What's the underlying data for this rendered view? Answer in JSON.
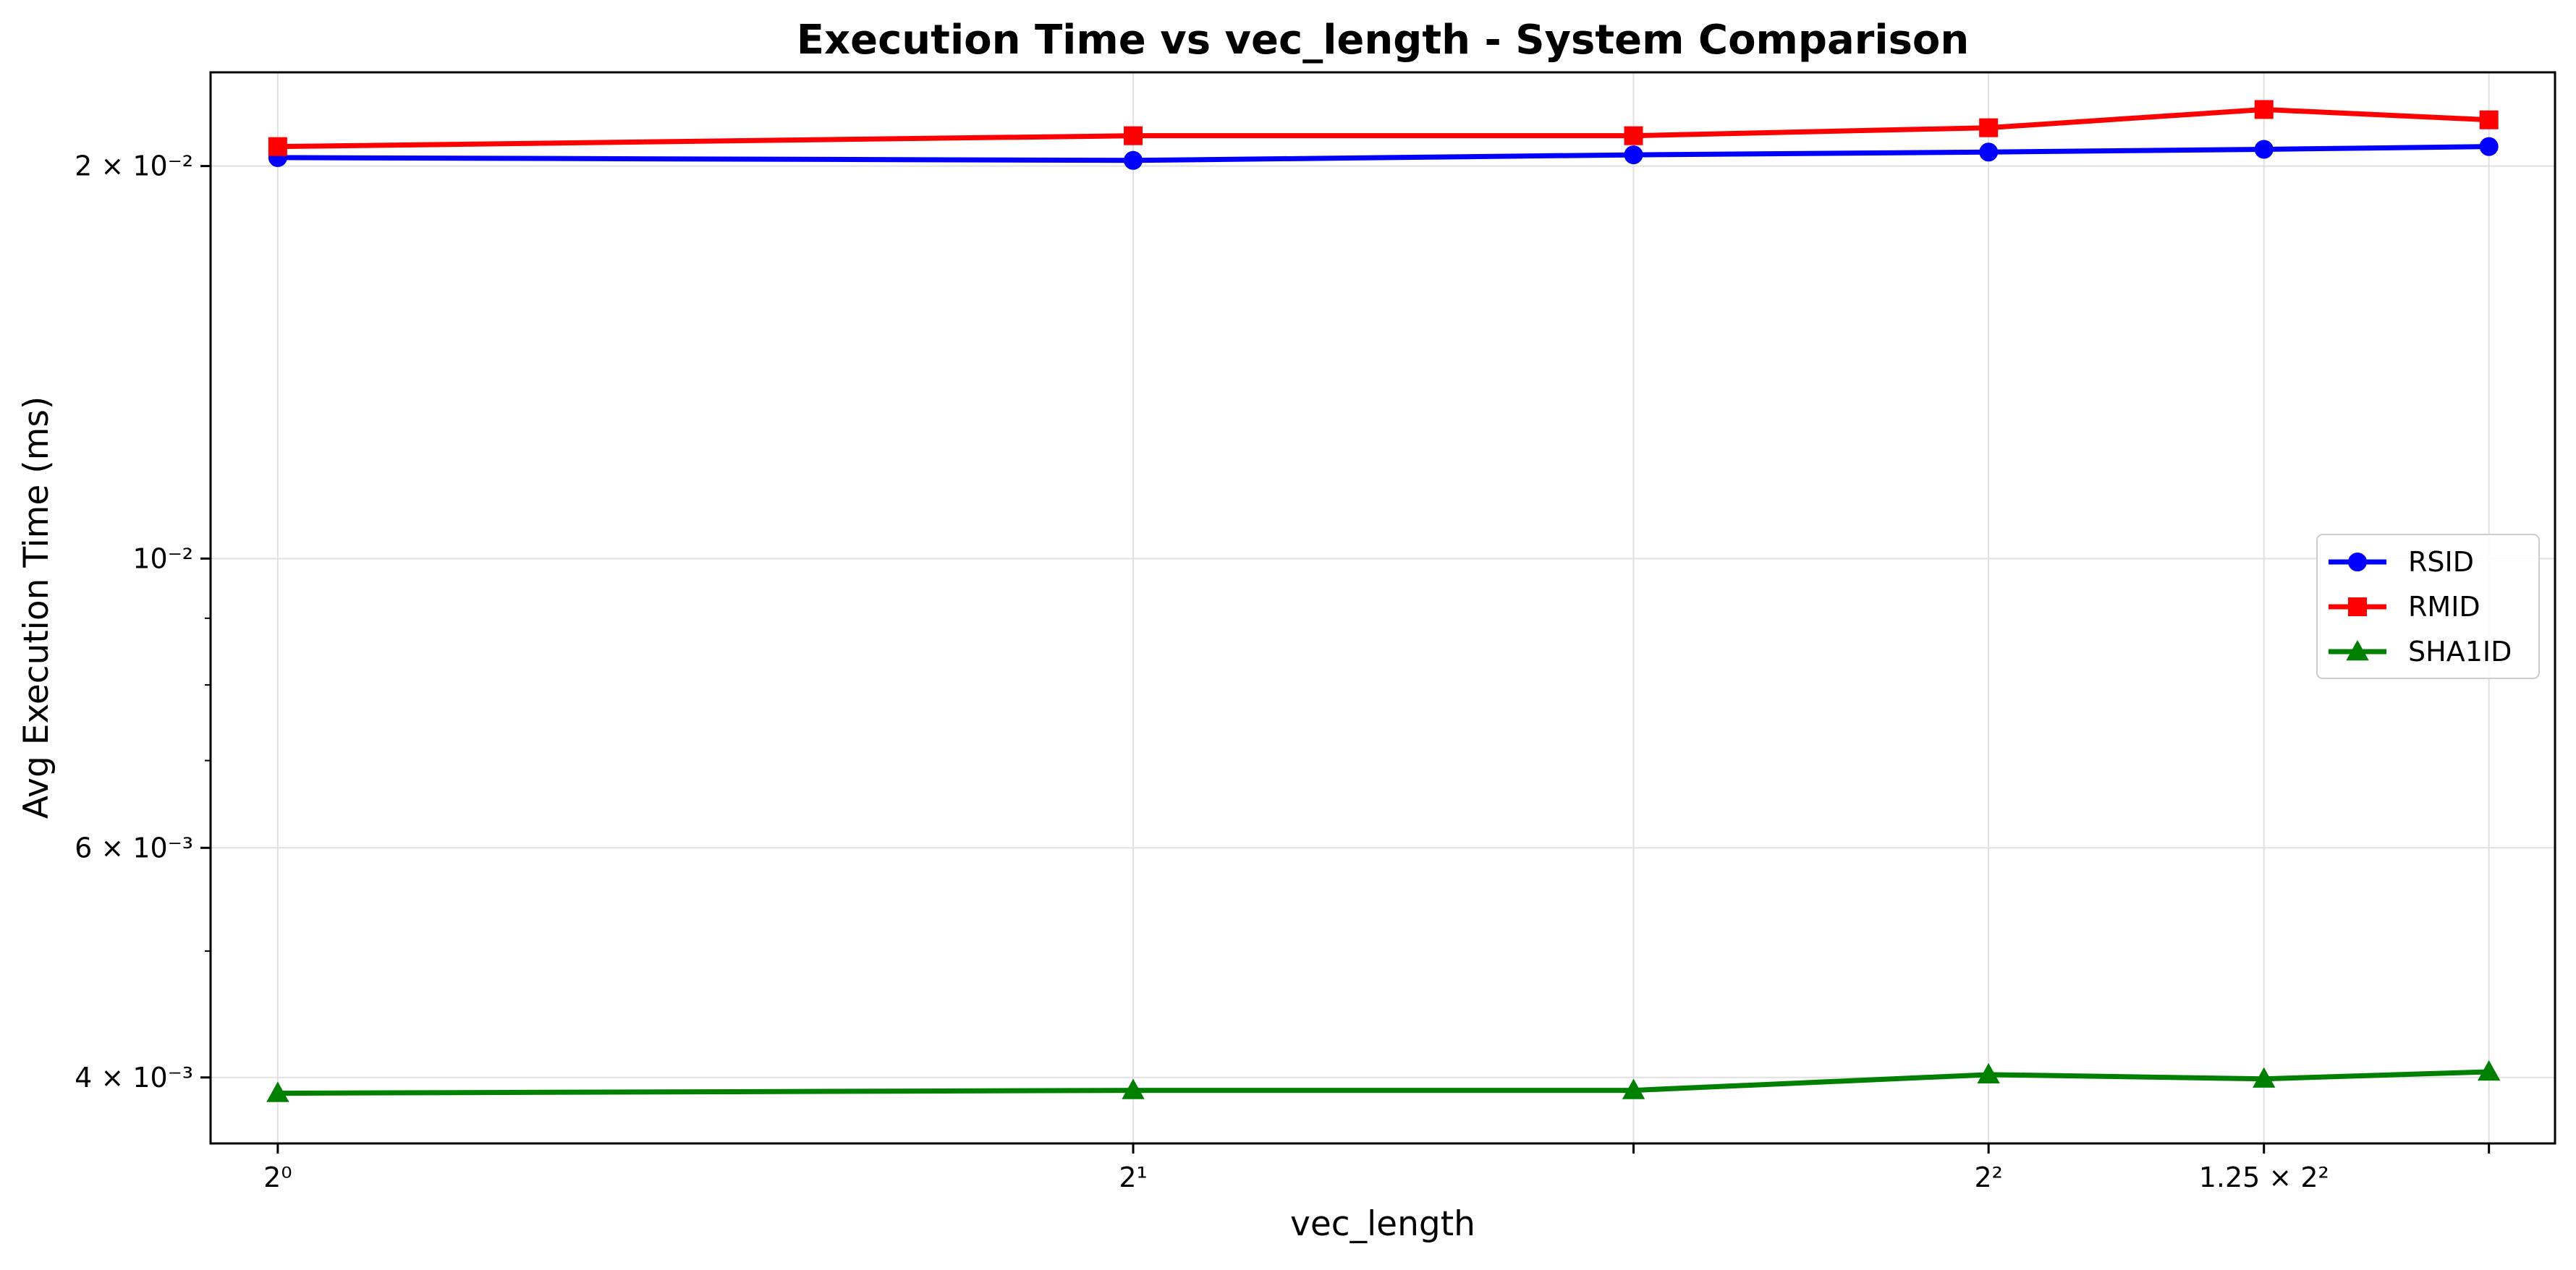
{
  "chart_data": {
    "type": "line",
    "title": "Execution Time vs vec_length - System Comparison",
    "xlabel": "vec_length",
    "ylabel": "Avg Execution Time (ms)",
    "x_scale": "log2",
    "y_scale": "log",
    "xlim": [
      0.947,
      6.33
    ],
    "ylim": [
      0.00356,
      0.0236
    ],
    "grid": true,
    "legend_position": "right",
    "x": [
      1,
      2,
      3,
      4,
      5,
      6
    ],
    "x_ticks": [
      {
        "value": 1,
        "label": "2⁰"
      },
      {
        "value": 2,
        "label": "2¹"
      },
      {
        "value": 3,
        "label": ""
      },
      {
        "value": 4,
        "label": "2²"
      },
      {
        "value": 5,
        "label": "1.25 × 2²"
      },
      {
        "value": 6,
        "label": ""
      }
    ],
    "y_ticks": [
      {
        "value": 0.02,
        "label": "2 × 10⁻²"
      },
      {
        "value": 0.01,
        "label": "10⁻²"
      },
      {
        "value": 0.006,
        "label": "6 × 10⁻³"
      },
      {
        "value": 0.004,
        "label": "4 × 10⁻³"
      }
    ],
    "y_minor_ticks": [
      0.005,
      0.007,
      0.008,
      0.009
    ],
    "series": [
      {
        "name": "RSID",
        "color": "#0000ff",
        "marker": "circle",
        "values": [
          0.0203,
          0.0202,
          0.0204,
          0.0205,
          0.0206,
          0.0207
        ]
      },
      {
        "name": "RMID",
        "color": "#ff0000",
        "marker": "square",
        "values": [
          0.0207,
          0.0211,
          0.0211,
          0.0214,
          0.0221,
          0.0217
        ]
      },
      {
        "name": "SHA1ID",
        "color": "#008000",
        "marker": "triangle",
        "values": [
          0.00389,
          0.00391,
          0.00391,
          0.00402,
          0.00399,
          0.00404
        ]
      }
    ]
  }
}
